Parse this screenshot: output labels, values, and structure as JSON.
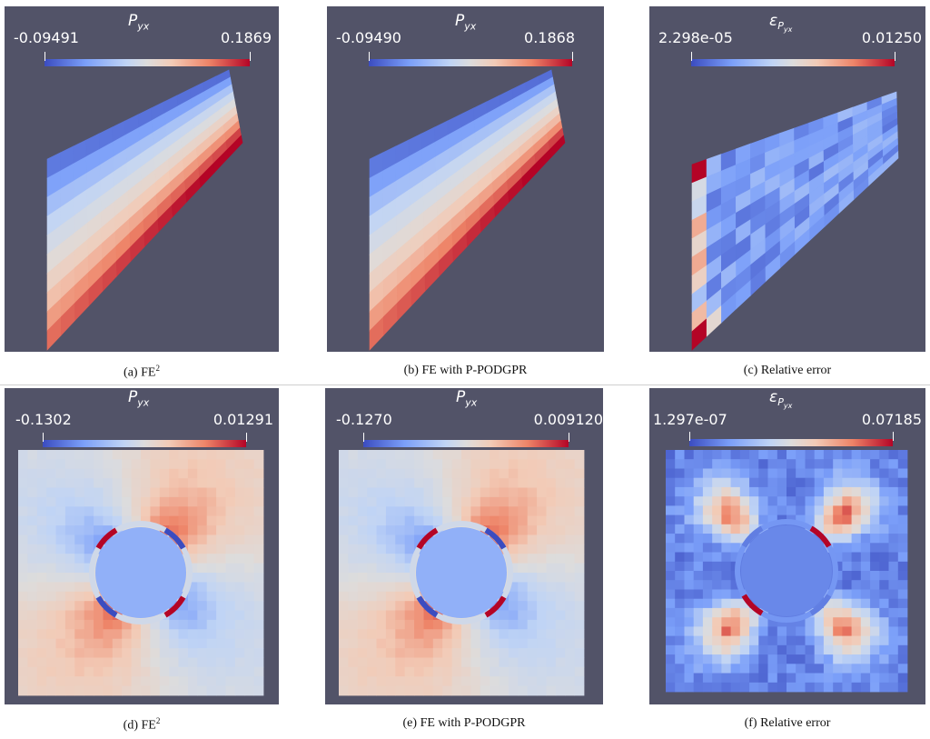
{
  "colormap": [
    "#3b4cc0",
    "#7b9ff9",
    "#c0d4f5",
    "#dddcdc",
    "#f2cbb7",
    "#ee8468",
    "#b40426"
  ],
  "panel_background": "#525368",
  "panels": [
    {
      "id": "a",
      "title_symbol": "P",
      "title_sub": "yx",
      "min": "-0.09491",
      "max": "0.1869",
      "caption_prefix": "(a)",
      "caption_text": "FE",
      "caption_sup": "2",
      "field": "beam_stress"
    },
    {
      "id": "b",
      "title_symbol": "P",
      "title_sub": "yx",
      "min": "-0.09490",
      "max": "0.1868",
      "caption_prefix": "(b)",
      "caption_text": "FE with P-PODGPR",
      "caption_sup": "",
      "field": "beam_stress"
    },
    {
      "id": "c",
      "title_symbol": "ε",
      "title_sub": "P",
      "title_subsub": "yx",
      "min": "2.298e-05",
      "max": "0.01250",
      "caption_prefix": "(c)",
      "caption_text": "Relative error",
      "caption_sup": "",
      "field": "beam_error"
    },
    {
      "id": "d",
      "title_symbol": "P",
      "title_sub": "yx",
      "min": "-0.1302",
      "max": "0.01291",
      "caption_prefix": "(d)",
      "caption_text": "FE",
      "caption_sup": "2",
      "field": "hole_stress"
    },
    {
      "id": "e",
      "title_symbol": "P",
      "title_sub": "yx",
      "min": "-0.1270",
      "max": "0.009120",
      "caption_prefix": "(e)",
      "caption_text": "FE with P-PODGPR",
      "caption_sup": "",
      "field": "hole_stress"
    },
    {
      "id": "f",
      "title_symbol": "ε",
      "title_sub": "P",
      "title_subsub": "yx",
      "min": "1.297e-07",
      "max": "0.07185",
      "caption_prefix": "(f)",
      "caption_text": "Relative error",
      "caption_sup": "",
      "field": "hole_error"
    }
  ]
}
